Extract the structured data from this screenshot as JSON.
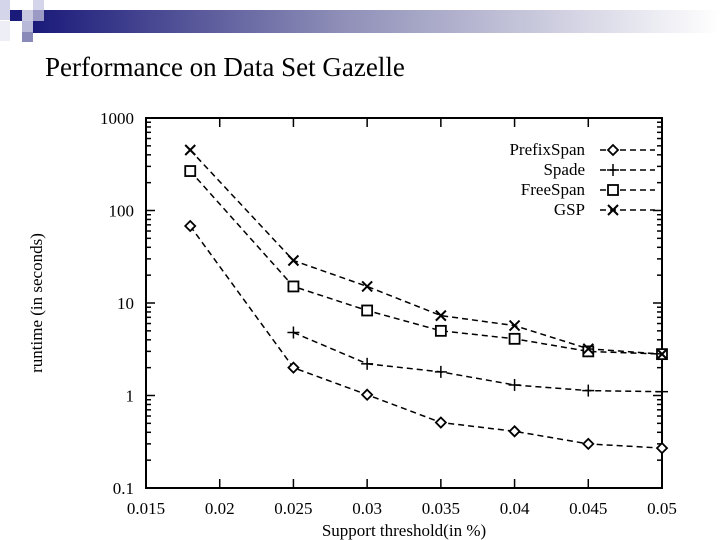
{
  "slide": {
    "title": "Performance on Data Set Gazelle",
    "banner_colors": {
      "dark": "#1a1a7a",
      "mid": "#6b6ba8",
      "light": "#c8c8e0"
    }
  },
  "chart_data": {
    "type": "line",
    "title": "Performance on Data Set Gazelle",
    "xlabel": "Support threshold(in %)",
    "ylabel": "runtime (in seconds)",
    "yscale": "log",
    "xlim": [
      0.015,
      0.05
    ],
    "ylim": [
      0.1,
      1000
    ],
    "xticks": [
      "0.015",
      "0.02",
      "0.025",
      "0.03",
      "0.035",
      "0.04",
      "0.045",
      "0.05"
    ],
    "yticks": [
      "1000",
      "100",
      "10",
      "1",
      "0.1"
    ],
    "grid": false,
    "legend_position": "upper right",
    "series": [
      {
        "name": "PrefixSpan",
        "marker": "diamond",
        "x": [
          0.018,
          0.025,
          0.03,
          0.035,
          0.04,
          0.045,
          0.05
        ],
        "values": [
          68,
          2.0,
          1.02,
          0.51,
          0.41,
          0.3,
          0.27
        ]
      },
      {
        "name": "Spade",
        "marker": "plus",
        "x": [
          0.025,
          0.03,
          0.035,
          0.04,
          0.045,
          0.05
        ],
        "values": [
          4.8,
          2.2,
          1.8,
          1.3,
          1.13,
          1.1
        ]
      },
      {
        "name": "FreeSpan",
        "marker": "square",
        "x": [
          0.018,
          0.025,
          0.03,
          0.035,
          0.04,
          0.045,
          0.05
        ],
        "values": [
          267,
          15.1,
          8.3,
          5.0,
          4.1,
          3.0,
          2.8
        ]
      },
      {
        "name": "GSP",
        "marker": "cross",
        "x": [
          0.018,
          0.025,
          0.03,
          0.035,
          0.04,
          0.045,
          0.05
        ],
        "values": [
          451,
          28.8,
          15.1,
          7.3,
          5.7,
          3.2,
          2.8
        ]
      }
    ]
  }
}
